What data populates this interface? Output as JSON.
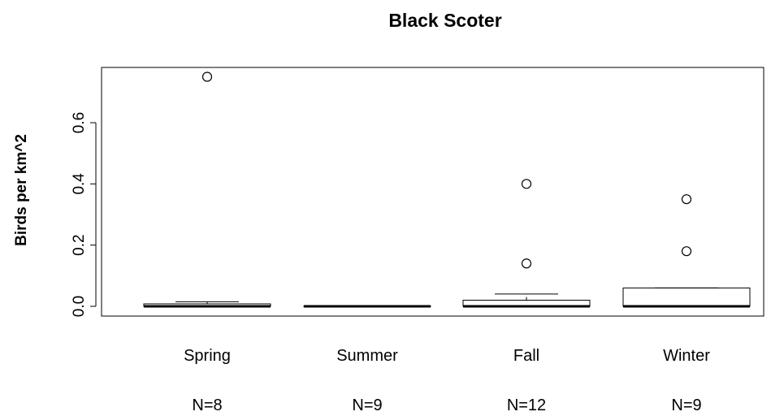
{
  "chart_data": {
    "type": "box",
    "title": "Black Scoter",
    "xlabel": "",
    "ylabel": "Birds per km^2",
    "ylim": [
      -0.03,
      0.78
    ],
    "yticks": [
      0.0,
      0.2,
      0.4,
      0.6
    ],
    "ytick_labels": [
      "0.0",
      "0.2",
      "0.4",
      "0.6"
    ],
    "categories": [
      "Spring",
      "Summer",
      "Fall",
      "Winter"
    ],
    "sample_sizes": [
      "N=8",
      "N=9",
      "N=12",
      "N=9"
    ],
    "boxes": [
      {
        "category": "Spring",
        "whisker_low": 0.0,
        "q1": 0.0,
        "median": 0.0,
        "q3": 0.008,
        "whisker_high": 0.015,
        "outliers": [
          0.75
        ]
      },
      {
        "category": "Summer",
        "whisker_low": 0.0,
        "q1": 0.0,
        "median": 0.0,
        "q3": 0.0,
        "whisker_high": 0.0,
        "outliers": []
      },
      {
        "category": "Fall",
        "whisker_low": 0.0,
        "q1": 0.0,
        "median": 0.0,
        "q3": 0.02,
        "whisker_high": 0.04,
        "outliers": [
          0.14,
          0.4
        ]
      },
      {
        "category": "Winter",
        "whisker_low": 0.0,
        "q1": 0.0,
        "median": 0.0,
        "q3": 0.06,
        "whisker_high": 0.06,
        "outliers": [
          0.18,
          0.35
        ]
      }
    ],
    "grid": false,
    "legend": "none"
  }
}
